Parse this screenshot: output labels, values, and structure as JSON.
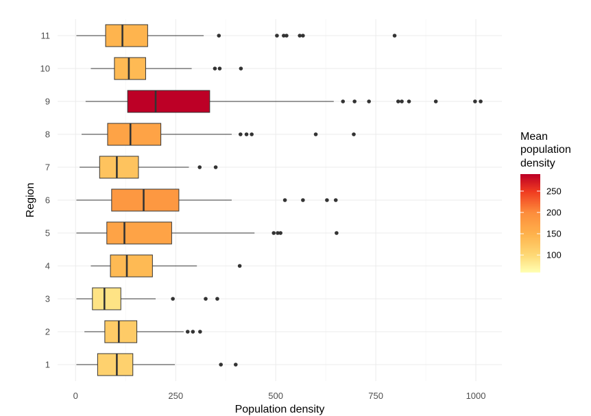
{
  "chart_data": {
    "type": "boxplot",
    "orientation": "horizontal",
    "xlabel": "Population density",
    "ylabel": "Region",
    "xlim": [
      -45,
      1065
    ],
    "x_ticks": [
      0,
      250,
      500,
      750,
      1000
    ],
    "x_tick_labels": [
      "0",
      "250",
      "500",
      "750",
      "1000"
    ],
    "grid": true,
    "legend": {
      "title_lines": [
        "Mean",
        "population",
        "density"
      ],
      "position": "right",
      "range": [
        60,
        290
      ],
      "breaks": [
        100,
        150,
        200,
        250
      ],
      "break_labels": [
        "100",
        "150",
        "200",
        "250"
      ],
      "colors": [
        "#ffffb2",
        "#fed976",
        "#feb24c",
        "#fd8d3c",
        "#f03b20",
        "#bd0026"
      ]
    },
    "series": [
      {
        "region": "1",
        "mean": 110,
        "min": 2,
        "q1": 55,
        "median": 103,
        "q3": 143,
        "max": 248,
        "outliers": [
          363,
          400
        ]
      },
      {
        "region": "2",
        "mean": 118,
        "min": 22,
        "q1": 73,
        "median": 108,
        "q3": 153,
        "max": 270,
        "outliers": [
          280,
          293,
          311
        ]
      },
      {
        "region": "3",
        "mean": 90,
        "min": 2,
        "q1": 42,
        "median": 72,
        "q3": 113,
        "max": 200,
        "outliers": [
          243,
          325,
          354
        ]
      },
      {
        "region": "4",
        "mean": 140,
        "min": 38,
        "q1": 87,
        "median": 128,
        "q3": 192,
        "max": 303,
        "outliers": [
          410
        ]
      },
      {
        "region": "5",
        "mean": 170,
        "min": 2,
        "q1": 78,
        "median": 122,
        "q3": 240,
        "max": 447,
        "outliers": [
          495,
          505,
          512,
          652
        ]
      },
      {
        "region": "6",
        "mean": 185,
        "min": 2,
        "q1": 90,
        "median": 170,
        "q3": 258,
        "max": 390,
        "outliers": [
          523,
          568,
          628,
          650
        ]
      },
      {
        "region": "7",
        "mean": 128,
        "min": 10,
        "q1": 60,
        "median": 103,
        "q3": 157,
        "max": 283,
        "outliers": [
          310,
          350
        ]
      },
      {
        "region": "8",
        "mean": 170,
        "min": 15,
        "q1": 80,
        "median": 137,
        "q3": 213,
        "max": 390,
        "outliers": [
          412,
          427,
          440,
          600,
          695
        ]
      },
      {
        "region": "9",
        "mean": 290,
        "min": 25,
        "q1": 130,
        "median": 200,
        "q3": 335,
        "max": 645,
        "outliers": [
          668,
          697,
          733,
          806,
          815,
          833,
          900,
          998,
          1012
        ]
      },
      {
        "region": "10",
        "mean": 140,
        "min": 38,
        "q1": 97,
        "median": 133,
        "q3": 175,
        "max": 290,
        "outliers": [
          348,
          360,
          413
        ]
      },
      {
        "region": "11",
        "mean": 148,
        "min": 2,
        "q1": 75,
        "median": 117,
        "q3": 180,
        "max": 320,
        "outliers": [
          358,
          503,
          520,
          527,
          560,
          568,
          797
        ]
      }
    ]
  }
}
